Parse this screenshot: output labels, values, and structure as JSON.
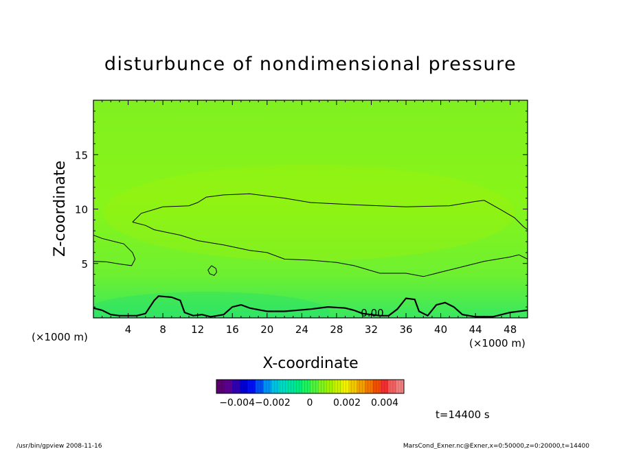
{
  "chart_data": {
    "type": "heatmap",
    "title": "disturbunce of nondimensional pressure",
    "xlabel": "X-coordinate",
    "ylabel": "Z-coordinate",
    "x_unit_left": "(×1000 m)",
    "x_unit_right": "(×1000 m)",
    "xlim": [
      0,
      50
    ],
    "ylim": [
      0,
      20
    ],
    "x_ticks": [
      4,
      8,
      12,
      16,
      20,
      24,
      28,
      32,
      36,
      40,
      44,
      48
    ],
    "y_ticks": [
      5,
      10,
      15
    ],
    "field_value_range": [
      -0.0001,
      0.0003
    ],
    "contour_label": "0.00",
    "contours": [
      {
        "name": "upper",
        "points": [
          [
            0,
            7.6
          ],
          [
            1,
            7.3
          ],
          [
            2.5,
            7.0
          ],
          [
            3.5,
            6.8
          ],
          [
            4.5,
            6.0
          ],
          [
            4.8,
            5.4
          ],
          [
            4.4,
            4.8
          ],
          [
            3,
            4.95
          ],
          [
            1.5,
            5.15
          ],
          [
            0,
            5.2
          ]
        ]
      },
      {
        "name": "middle",
        "points": [
          [
            4.5,
            8.8
          ],
          [
            5.5,
            9.6
          ],
          [
            8,
            10.2
          ],
          [
            11,
            10.3
          ],
          [
            12,
            10.6
          ],
          [
            13,
            11.1
          ],
          [
            15,
            11.3
          ],
          [
            18,
            11.4
          ],
          [
            20,
            11.2
          ],
          [
            22,
            11.0
          ],
          [
            25,
            10.6
          ],
          [
            30,
            10.4
          ],
          [
            33,
            10.3
          ],
          [
            36,
            10.2
          ],
          [
            41,
            10.3
          ],
          [
            44,
            10.7
          ],
          [
            45,
            10.8
          ],
          [
            47,
            9.9
          ],
          [
            48.5,
            9.2
          ],
          [
            49.5,
            8.4
          ],
          [
            50,
            8.1
          ]
        ]
      },
      {
        "name": "lower",
        "points": [
          [
            4.5,
            8.8
          ],
          [
            6,
            8.5
          ],
          [
            7,
            8.1
          ],
          [
            10,
            7.6
          ],
          [
            12,
            7.1
          ],
          [
            15,
            6.7
          ],
          [
            18,
            6.2
          ],
          [
            20,
            6.0
          ],
          [
            22,
            5.4
          ],
          [
            25,
            5.3
          ],
          [
            28,
            5.1
          ],
          [
            30,
            4.8
          ],
          [
            33,
            4.1
          ],
          [
            36,
            4.1
          ],
          [
            38,
            3.8
          ],
          [
            39,
            4.0
          ],
          [
            40,
            4.2
          ],
          [
            42,
            4.6
          ],
          [
            45,
            5.2
          ],
          [
            48,
            5.6
          ],
          [
            49,
            5.8
          ],
          [
            50,
            5.4
          ]
        ]
      },
      {
        "name": "small-loop",
        "points": [
          [
            13.6,
            4.8
          ],
          [
            14.1,
            4.55
          ],
          [
            14.2,
            4.2
          ],
          [
            13.9,
            3.9
          ],
          [
            13.4,
            4.05
          ],
          [
            13.2,
            4.4
          ],
          [
            13.6,
            4.8
          ]
        ]
      }
    ],
    "surface_contour": {
      "points": [
        [
          0,
          0.9
        ],
        [
          1,
          0.7
        ],
        [
          2,
          0.3
        ],
        [
          3,
          0.2
        ],
        [
          5,
          0.2
        ],
        [
          6,
          0.4
        ],
        [
          7,
          1.6
        ],
        [
          7.5,
          2.0
        ],
        [
          9,
          1.9
        ],
        [
          10,
          1.6
        ],
        [
          10.5,
          0.5
        ],
        [
          11.5,
          0.2
        ],
        [
          12.5,
          0.3
        ],
        [
          13.5,
          0.1
        ],
        [
          15,
          0.3
        ],
        [
          16,
          1.0
        ],
        [
          17,
          1.2
        ],
        [
          18,
          0.9
        ],
        [
          20,
          0.6
        ],
        [
          22,
          0.6
        ],
        [
          25,
          0.8
        ],
        [
          27,
          1.0
        ],
        [
          29,
          0.9
        ],
        [
          30,
          0.7
        ],
        [
          31,
          0.4
        ],
        [
          33,
          0.2
        ],
        [
          34,
          0.2
        ],
        [
          35,
          0.8
        ],
        [
          36,
          1.8
        ],
        [
          37,
          1.7
        ],
        [
          37.5,
          0.6
        ],
        [
          38.5,
          0.2
        ],
        [
          39.5,
          1.2
        ],
        [
          40.5,
          1.4
        ],
        [
          41.5,
          1.0
        ],
        [
          42.5,
          0.3
        ],
        [
          44,
          0.1
        ],
        [
          46,
          0.1
        ],
        [
          48,
          0.5
        ],
        [
          50,
          0.7
        ]
      ]
    }
  },
  "colorbar": {
    "tick_labels": [
      "−0.004−0.002",
      "0",
      "0.002",
      "0.004"
    ],
    "colors": [
      "#5a0070",
      "#5a0090",
      "#3000b0",
      "#0000d0",
      "#0010f0",
      "#0050f0",
      "#0090f0",
      "#00c0e0",
      "#00d8c0",
      "#00e0a0",
      "#00e880",
      "#20f060",
      "#50f040",
      "#80f020",
      "#a0f000",
      "#c8f000",
      "#f0f000",
      "#f0c800",
      "#f0a000",
      "#f07800",
      "#f05000",
      "#f03030",
      "#f06060",
      "#f08080"
    ]
  },
  "annotations": {
    "time_label": "t=14400 s",
    "footer_left": "/usr/bin/gpview  2008-11-16",
    "footer_right": "MarsCond_Exner.nc@Exner,x=0:50000,z=0:20000,t=14400"
  }
}
